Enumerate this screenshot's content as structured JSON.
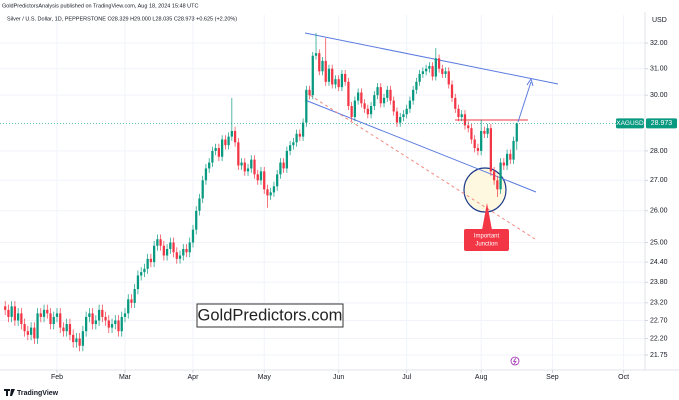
{
  "publish_line": "GoldPredictorsAnalysis published on TradingView.com, Aug 18, 2024 15:48 UTC",
  "footer": "TradingView",
  "chart_data": {
    "type": "candlestick",
    "title": "Silver / U.S. Dollar, 1D, PEPPERSTONE  O28.329 H29.000 L28.035 C28.973 +0.625 (+2.20%)",
    "currency": "USD",
    "watermark": "GoldPredictors.com",
    "annotation": [
      "Important",
      "Junction"
    ],
    "log_scale": true,
    "grid": true,
    "up_color": "#089981",
    "down_color": "#f23645",
    "ylim": [
      21.35,
      33.13
    ],
    "yticks": [
      {
        "value": 32,
        "label": "32.00"
      },
      {
        "value": 31,
        "label": "31.00"
      },
      {
        "value": 30,
        "label": "30.00"
      },
      {
        "value": 28,
        "label": "28.00"
      },
      {
        "value": 27,
        "label": "27.00"
      },
      {
        "value": 26,
        "label": "26.00"
      },
      {
        "value": 25,
        "label": "25.00"
      },
      {
        "value": 24.4,
        "label": "24.40"
      },
      {
        "value": 23.8,
        "label": "23.80"
      },
      {
        "value": 23.2,
        "label": "23.20"
      },
      {
        "value": 22.7,
        "label": "22.70"
      },
      {
        "value": 22.2,
        "label": "22.20"
      },
      {
        "value": 21.75,
        "label": "21.75"
      }
    ],
    "xlim": [
      -1.6,
      197.6
    ],
    "xticks": [
      {
        "value": 16,
        "label": "Feb"
      },
      {
        "value": 37,
        "label": "Mar"
      },
      {
        "value": 58,
        "label": "Apr"
      },
      {
        "value": 80,
        "label": "May"
      },
      {
        "value": 103,
        "label": "Jun"
      },
      {
        "value": 124,
        "label": "Jul"
      },
      {
        "value": 147,
        "label": "Aug"
      },
      {
        "value": 169,
        "label": "Sep"
      },
      {
        "value": 191,
        "label": "Oct"
      }
    ],
    "last_price": {
      "symbol": "XAGUSD",
      "value": 28.973
    },
    "open": [
      23.1,
      23.0,
      22.8,
      23.1,
      22.7,
      22.9,
      22.6,
      22.4,
      22.3,
      22.5,
      22.2,
      22.9,
      22.8,
      23.0,
      22.9,
      22.6,
      22.8,
      22.9,
      22.5,
      22.4,
      22.6,
      22.3,
      22.1,
      22.2,
      22.0,
      22.4,
      22.8,
      22.9,
      22.6,
      22.7,
      23.0,
      22.8,
      22.7,
      22.5,
      22.6,
      22.7,
      22.4,
      22.8,
      22.9,
      23.3,
      23.2,
      23.6,
      24.0,
      24.1,
      24.2,
      24.5,
      24.4,
      24.9,
      25.1,
      24.9,
      24.6,
      24.8,
      25.0,
      24.7,
      24.5,
      24.6,
      24.8,
      24.7,
      25.0,
      25.4,
      26.0,
      26.4,
      27.0,
      27.4,
      27.6,
      28.0,
      28.1,
      27.8,
      28.4,
      28.2,
      28.5,
      28.7,
      28.3,
      27.5,
      27.6,
      27.3,
      27.4,
      27.7,
      27.2,
      27.0,
      27.3,
      26.7,
      26.5,
      26.6,
      26.8,
      27.2,
      27.6,
      27.4,
      28.0,
      28.2,
      28.3,
      28.6,
      28.5,
      29.0,
      30.2,
      30.0,
      31.5,
      31.6,
      30.9,
      31.3,
      30.5,
      31.0,
      30.4,
      30.6,
      30.3,
      30.8,
      30.5,
      29.6,
      29.2,
      29.8,
      30.1,
      29.7,
      29.5,
      29.3,
      29.6,
      30.0,
      30.3,
      29.7,
      29.9,
      30.2,
      29.8,
      29.4,
      29.0,
      29.2,
      29.3,
      29.5,
      29.8,
      30.2,
      30.5,
      30.8,
      30.9,
      31.0,
      31.1,
      30.7,
      31.4,
      31.0,
      30.8,
      30.9,
      30.4,
      29.9,
      29.5,
      29.2,
      29.3,
      28.9,
      28.8,
      28.4,
      28.1,
      28.0,
      28.7,
      28.6,
      28.8,
      27.3,
      27.0,
      26.7,
      27.6,
      27.5,
      27.9,
      27.7,
      28.329
    ],
    "high": [
      23.25,
      23.15,
      23.25,
      23.25,
      23.05,
      23.05,
      22.75,
      22.55,
      22.65,
      22.65,
      23.05,
      23.05,
      23.15,
      23.15,
      23.05,
      22.95,
      23.05,
      23.05,
      22.65,
      22.75,
      22.75,
      22.45,
      22.35,
      22.35,
      22.55,
      22.95,
      23.05,
      23.05,
      22.85,
      23.15,
      23.15,
      22.95,
      22.85,
      22.75,
      22.85,
      22.85,
      22.95,
      23.05,
      23.45,
      23.45,
      23.75,
      24.15,
      24.25,
      24.35,
      24.65,
      24.65,
      25.05,
      25.25,
      25.25,
      25.05,
      24.95,
      25.15,
      25.15,
      24.85,
      24.75,
      24.95,
      24.95,
      25.15,
      25.55,
      26.15,
      26.55,
      27.15,
      27.55,
      27.75,
      28.15,
      28.25,
      28.25,
      28.55,
      28.55,
      28.65,
      29.9,
      28.85,
      28.45,
      27.75,
      27.75,
      27.55,
      27.85,
      27.85,
      27.35,
      27.45,
      27.45,
      26.85,
      26.75,
      26.95,
      27.35,
      27.75,
      27.75,
      28.15,
      28.35,
      28.45,
      28.75,
      28.75,
      29.15,
      30.35,
      30.35,
      31.65,
      32.4,
      31.75,
      31.45,
      32.2,
      31.15,
      31.15,
      30.75,
      30.75,
      30.95,
      30.95,
      30.65,
      29.75,
      29.95,
      30.25,
      30.25,
      29.85,
      29.65,
      29.75,
      30.15,
      30.45,
      30.45,
      30.05,
      30.35,
      30.35,
      29.95,
      29.55,
      29.35,
      29.45,
      29.65,
      29.95,
      30.35,
      30.65,
      30.95,
      31.05,
      31.15,
      31.25,
      31.25,
      31.8,
      31.55,
      31.15,
      31.05,
      31.05,
      30.55,
      30.05,
      29.65,
      29.45,
      29.45,
      29.05,
      28.95,
      28.55,
      28.25,
      29.1,
      28.85,
      28.95,
      28.95,
      27.45,
      27.15,
      27.75,
      27.75,
      28.05,
      28.05,
      28.5,
      29.0
    ],
    "low": [
      22.85,
      22.65,
      22.65,
      22.55,
      22.55,
      22.45,
      22.25,
      22.15,
      22.15,
      22.05,
      22.05,
      22.65,
      22.65,
      22.75,
      22.45,
      22.45,
      22.65,
      22.35,
      22.25,
      22.25,
      22.15,
      21.95,
      21.95,
      21.85,
      21.85,
      22.25,
      22.65,
      22.45,
      22.45,
      22.55,
      22.65,
      22.55,
      22.35,
      22.35,
      22.45,
      22.25,
      22.25,
      22.65,
      22.75,
      23.05,
      23.05,
      23.45,
      23.85,
      23.95,
      24.05,
      24.25,
      24.25,
      24.75,
      24.75,
      24.45,
      24.45,
      24.65,
      24.55,
      24.35,
      24.35,
      24.45,
      24.55,
      24.55,
      24.85,
      25.25,
      25.85,
      26.25,
      26.85,
      27.25,
      27.45,
      27.85,
      27.65,
      27.65,
      28.05,
      28.05,
      28.35,
      28.15,
      27.35,
      27.35,
      27.15,
      27.15,
      27.25,
      27.05,
      26.85,
      26.85,
      26.55,
      26.1,
      26.35,
      26.45,
      26.65,
      27.05,
      27.25,
      27.25,
      27.85,
      28.05,
      28.15,
      28.35,
      28.35,
      28.85,
      29.85,
      29.85,
      31.35,
      30.75,
      30.75,
      30.35,
      30.35,
      30.25,
      30.25,
      30.15,
      30.15,
      30.35,
      29.45,
      29.05,
      29.05,
      29.65,
      29.55,
      29.35,
      29.15,
      29.15,
      29.45,
      29.85,
      29.55,
      29.55,
      29.75,
      29.65,
      29.25,
      28.85,
      28.85,
      29.05,
      29.15,
      29.35,
      29.65,
      30.05,
      30.35,
      30.65,
      30.75,
      30.85,
      30.55,
      30.55,
      30.85,
      30.65,
      30.65,
      30.25,
      29.75,
      29.35,
      29.05,
      29.05,
      28.75,
      28.65,
      28.25,
      27.95,
      27.85,
      27.85,
      28.45,
      28.45,
      27.15,
      26.85,
      26.45,
      26.55,
      27.35,
      27.35,
      27.55,
      27.55,
      28.035
    ],
    "close": [
      23.0,
      22.8,
      23.1,
      22.7,
      22.9,
      22.6,
      22.4,
      22.3,
      22.5,
      22.2,
      22.9,
      22.8,
      23.0,
      22.9,
      22.6,
      22.8,
      22.9,
      22.5,
      22.4,
      22.6,
      22.3,
      22.1,
      22.2,
      22.0,
      22.4,
      22.8,
      22.9,
      22.6,
      22.7,
      23.0,
      22.8,
      22.7,
      22.5,
      22.6,
      22.7,
      22.4,
      22.8,
      22.9,
      23.3,
      23.2,
      23.6,
      24.0,
      24.1,
      24.2,
      24.5,
      24.4,
      24.9,
      25.1,
      24.9,
      24.6,
      24.8,
      25.0,
      24.7,
      24.5,
      24.6,
      24.8,
      24.7,
      25.0,
      25.4,
      26.0,
      26.4,
      27.0,
      27.4,
      27.6,
      28.0,
      28.1,
      27.8,
      28.4,
      28.2,
      28.5,
      28.7,
      28.3,
      27.5,
      27.6,
      27.3,
      27.4,
      27.7,
      27.2,
      27.0,
      27.3,
      26.7,
      26.5,
      26.6,
      26.8,
      27.2,
      27.6,
      27.4,
      28.0,
      28.2,
      28.3,
      28.6,
      28.5,
      29.0,
      30.2,
      30.0,
      31.5,
      31.6,
      30.9,
      31.3,
      30.5,
      31.0,
      30.4,
      30.6,
      30.3,
      30.8,
      30.5,
      29.6,
      29.2,
      29.8,
      30.1,
      29.7,
      29.5,
      29.3,
      29.6,
      30.0,
      30.3,
      29.7,
      29.9,
      30.2,
      29.8,
      29.4,
      29.0,
      29.2,
      29.3,
      29.5,
      29.8,
      30.2,
      30.5,
      30.8,
      30.9,
      31.0,
      31.1,
      30.7,
      31.4,
      31.0,
      30.8,
      30.9,
      30.4,
      29.9,
      29.5,
      29.2,
      29.3,
      28.9,
      28.8,
      28.4,
      28.1,
      28.0,
      28.7,
      28.6,
      28.8,
      27.3,
      27.0,
      26.7,
      27.6,
      27.5,
      27.9,
      27.7,
      28.35,
      28.973
    ]
  }
}
